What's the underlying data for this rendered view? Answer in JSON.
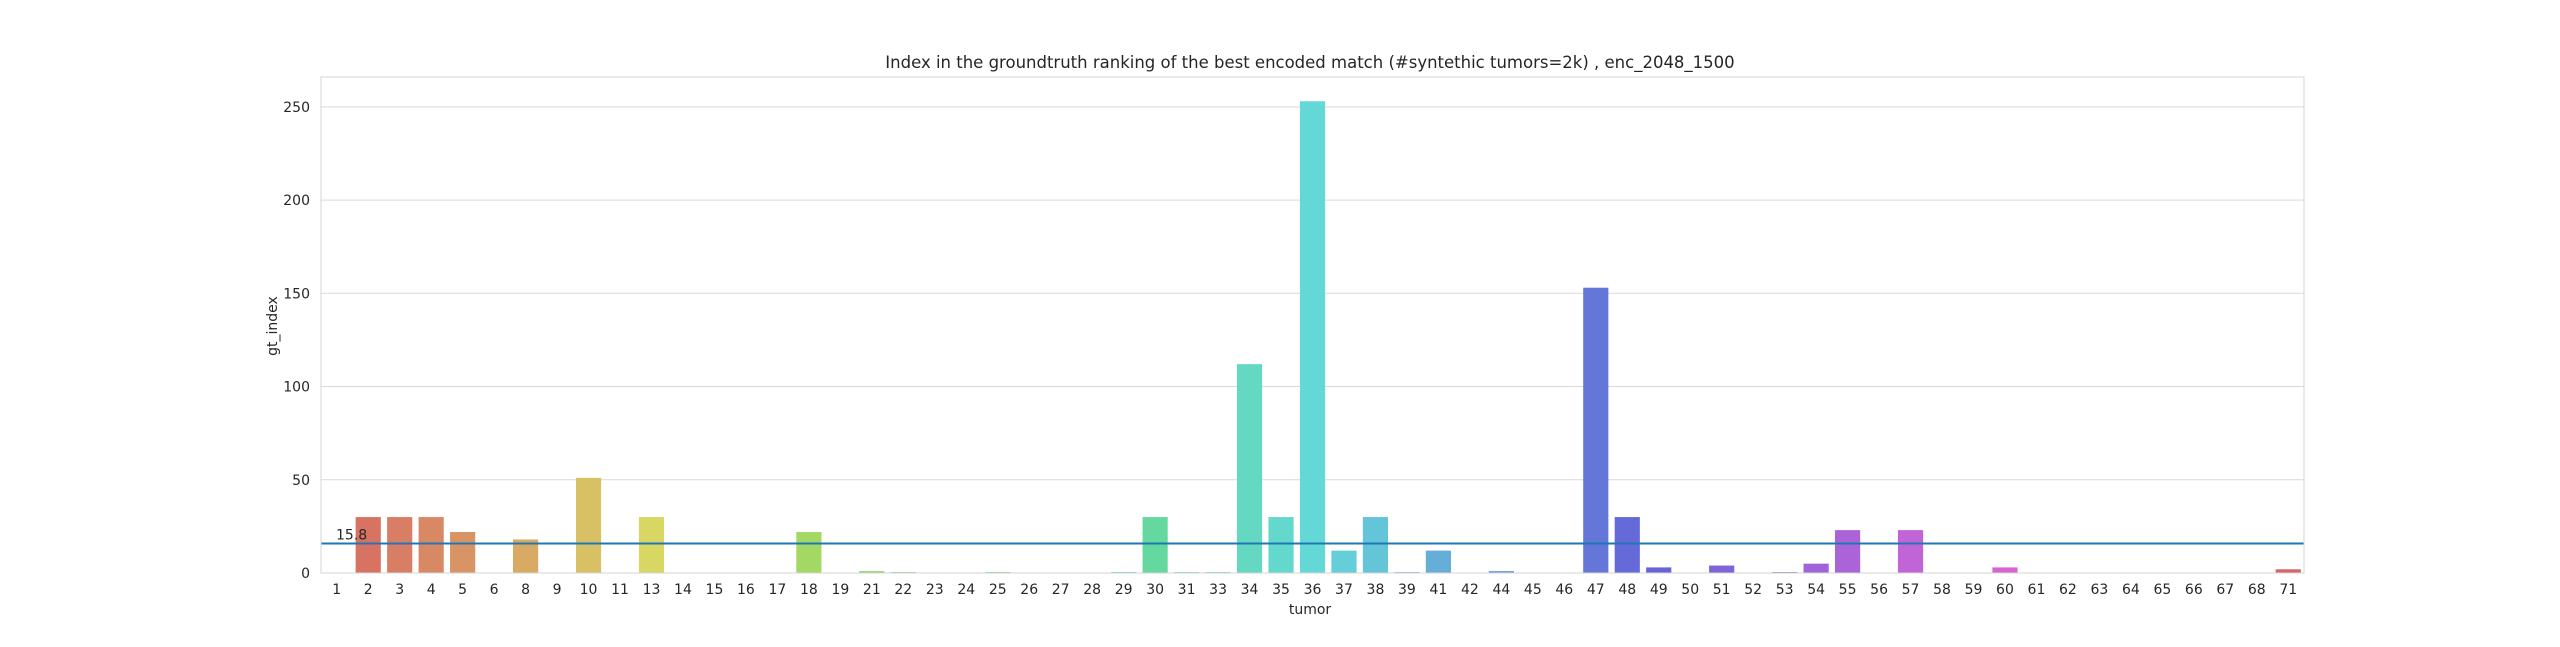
{
  "chart_data": {
    "type": "bar",
    "title": "Index in the groundtruth ranking of the best encoded match (#syntethic tumors=2k) , enc_2048_1500",
    "xlabel": "tumor",
    "ylabel": "gt_index",
    "ylim": [
      0,
      266
    ],
    "yticks": [
      0,
      50,
      100,
      150,
      200,
      250
    ],
    "grid": "horizontal",
    "categories": [
      "1",
      "2",
      "3",
      "4",
      "5",
      "6",
      "8",
      "9",
      "10",
      "11",
      "13",
      "14",
      "15",
      "16",
      "17",
      "18",
      "19",
      "21",
      "22",
      "23",
      "24",
      "25",
      "26",
      "27",
      "28",
      "29",
      "30",
      "31",
      "33",
      "34",
      "35",
      "36",
      "37",
      "38",
      "39",
      "41",
      "42",
      "44",
      "45",
      "46",
      "47",
      "48",
      "49",
      "50",
      "51",
      "52",
      "53",
      "54",
      "55",
      "56",
      "57",
      "58",
      "59",
      "60",
      "61",
      "62",
      "63",
      "64",
      "65",
      "66",
      "67",
      "68",
      "71"
    ],
    "values": [
      0,
      30,
      30,
      30,
      22,
      0,
      18,
      0,
      51,
      0,
      30,
      0,
      0,
      0,
      0,
      22,
      0,
      1,
      0.5,
      0,
      0,
      0.5,
      0,
      0,
      0,
      0.5,
      30,
      0.5,
      0.5,
      112,
      30,
      253,
      12,
      30,
      0.5,
      12,
      0,
      1,
      0,
      0,
      153,
      30,
      3,
      0,
      4,
      0,
      0.5,
      5,
      23,
      0,
      23,
      0,
      0,
      3,
      0,
      0,
      0,
      0,
      0,
      0,
      0,
      0,
      2
    ],
    "reference_line": {
      "value": 15.8,
      "label": "15.8",
      "color": "#1f77b4"
    }
  }
}
